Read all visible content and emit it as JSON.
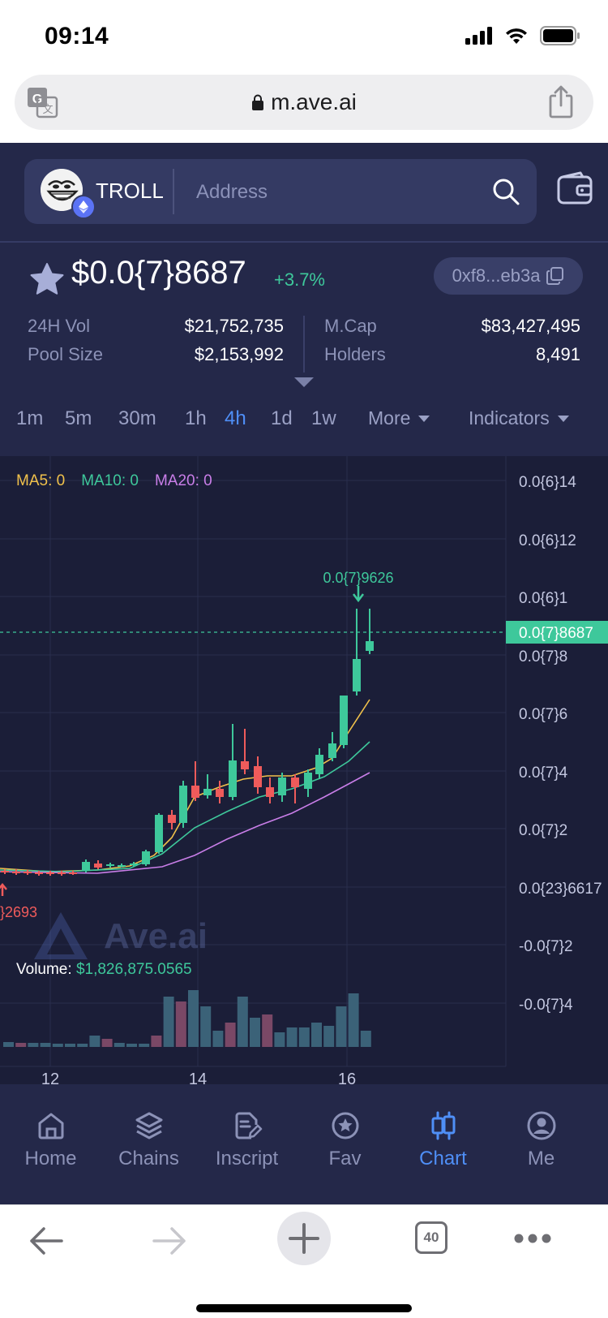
{
  "status_bar": {
    "time": "09:14"
  },
  "browser": {
    "url": "m.ave.ai",
    "tabs_count": "40"
  },
  "header": {
    "token_symbol": "TROLL",
    "search_placeholder": "Address"
  },
  "token": {
    "price": "$0.0{7}8687",
    "change": "+3.7%",
    "contract": "0xf8...eb3a",
    "stats": {
      "vol_label": "24H Vol",
      "vol_value": "$21,752,735",
      "pool_label": "Pool Size",
      "pool_value": "$2,153,992",
      "mcap_label": "M.Cap",
      "mcap_value": "$83,427,495",
      "holders_label": "Holders",
      "holders_value": "8,491"
    }
  },
  "intervals": {
    "items": [
      "1m",
      "5m",
      "30m",
      "1h",
      "4h",
      "1d",
      "1w"
    ],
    "active": "4h",
    "more": "More",
    "indicators": "Indicators"
  },
  "chart": {
    "ma5": "MA5: 0",
    "ma10": "MA10: 0",
    "ma20": "MA20: 0",
    "y_labels": [
      "0.0{6}14",
      "0.0{6}12",
      "0.0{6}1",
      "0.0{7}8",
      "0.0{7}6",
      "0.0{7}4",
      "0.0{7}2",
      "0.0{23}6617",
      "-0.0{7}2",
      "-0.0{7}4"
    ],
    "current_price_tag": "0.0{7}8687",
    "high_marker": "0.0{7}9626",
    "low_marker": "}2693",
    "x_labels": [
      "12",
      "14",
      "16"
    ],
    "volume_label": "Volume: ",
    "volume_value": "$1,826,875.0565",
    "watermark": "Ave.ai",
    "colors": {
      "up": "#3ec89b",
      "down": "#ef5b5b",
      "ma5": "#f0c14b",
      "ma10": "#3ec89b",
      "ma20": "#c97ee8"
    }
  },
  "nav": {
    "items": [
      {
        "label": "Home",
        "icon": "home-icon"
      },
      {
        "label": "Chains",
        "icon": "layers-icon"
      },
      {
        "label": "Inscript",
        "icon": "inscript-icon"
      },
      {
        "label": "Fav",
        "icon": "star-badge-icon"
      },
      {
        "label": "Chart",
        "icon": "candlestick-icon"
      },
      {
        "label": "Me",
        "icon": "user-icon"
      }
    ],
    "active": "Chart"
  }
}
